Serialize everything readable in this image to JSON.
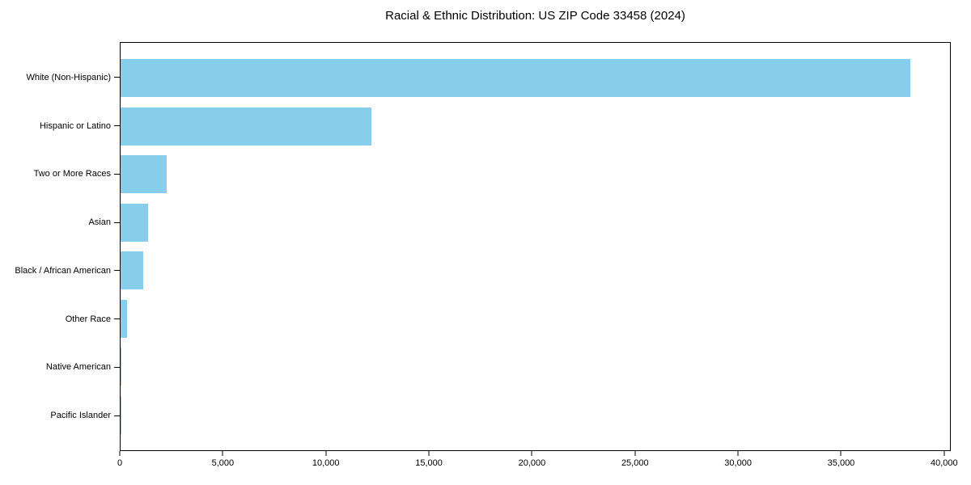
{
  "chart_data": {
    "type": "bar",
    "orientation": "horizontal",
    "title": "Racial & Ethnic Distribution: US ZIP Code 33458 (2024)",
    "categories": [
      "White (Non-Hispanic)",
      "Hispanic or Latino",
      "Two or More Races",
      "Asian",
      "Black / African American",
      "Other Race",
      "Native American",
      "Pacific Islander"
    ],
    "values": [
      38400,
      12200,
      2250,
      1350,
      1100,
      300,
      50,
      25
    ],
    "xlabel": "",
    "ylabel": "",
    "xlim": [
      0,
      40320
    ],
    "xticks": [
      0,
      5000,
      10000,
      15000,
      20000,
      25000,
      30000,
      35000,
      40000
    ],
    "xtick_labels": [
      "0",
      "5,000",
      "10,000",
      "15,000",
      "20,000",
      "25,000",
      "30,000",
      "35,000",
      "40,000"
    ],
    "bar_color": "#87CEEB",
    "axis_color": "#000000",
    "background_color": "#ffffff",
    "grid": false,
    "legend": false
  }
}
